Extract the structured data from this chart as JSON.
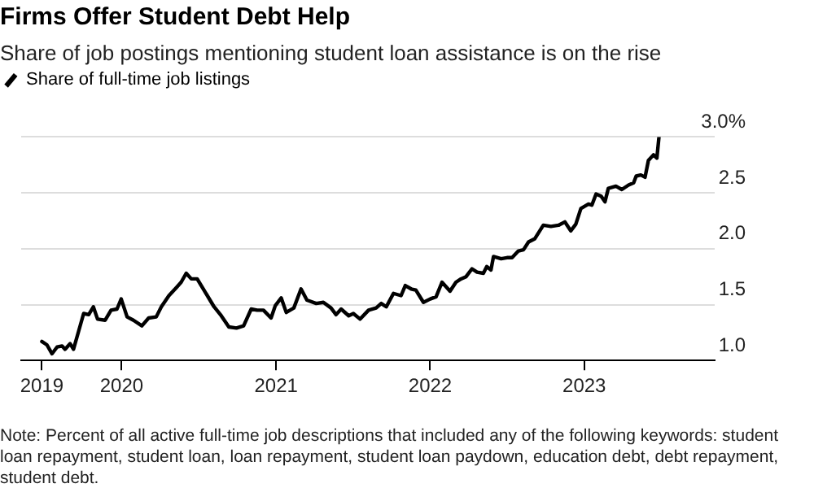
{
  "chart_data": {
    "type": "line",
    "title": "Firms Offer Student Debt Help",
    "subtitle": "Share of job postings mentioning student loan assistance is on the rise",
    "annotations": [
      "Note: Percent of all active full-time job descriptions that included any of the following keywords: student loan repayment, student loan, loan repayment, student loan paydown, education debt, debt repayment, student debt."
    ],
    "x": [
      "2019-06-26",
      "2019-07-08",
      "2019-07-20",
      "2019-08-01",
      "2019-08-13",
      "2019-08-20",
      "2019-09-01",
      "2019-09-09",
      "2019-09-21",
      "2019-10-03",
      "2019-10-15",
      "2019-10-26",
      "2019-11-05",
      "2019-11-23",
      "2019-12-07",
      "2019-12-21",
      "2019-12-31",
      "2020-01-14",
      "2020-01-29",
      "2020-02-18",
      "2020-03-05",
      "2020-03-23",
      "2020-04-04",
      "2020-04-22",
      "2020-05-09",
      "2020-05-21",
      "2020-06-02",
      "2020-06-14",
      "2020-06-28",
      "2020-07-14",
      "2020-08-07",
      "2020-08-24",
      "2020-09-11",
      "2020-09-29",
      "2020-10-16",
      "2020-11-03",
      "2020-11-17",
      "2020-12-02",
      "2020-12-20",
      "2020-12-30",
      "2021-01-13",
      "2021-01-25",
      "2021-02-12",
      "2021-03-01",
      "2021-03-15",
      "2021-04-06",
      "2021-04-23",
      "2021-05-11",
      "2021-05-23",
      "2021-06-04",
      "2021-06-22",
      "2021-07-03",
      "2021-07-19",
      "2021-08-08",
      "2021-08-26",
      "2021-09-07",
      "2021-09-19",
      "2021-10-06",
      "2021-10-24",
      "2021-11-03",
      "2021-11-17",
      "2021-11-28",
      "2021-12-16",
      "2022-01-01",
      "2022-01-15",
      "2022-01-29",
      "2022-02-17",
      "2022-03-03",
      "2022-03-15",
      "2022-03-27",
      "2022-04-10",
      "2022-04-22",
      "2022-05-07",
      "2022-05-15",
      "2022-05-25",
      "2022-05-31",
      "2022-06-18",
      "2022-07-02",
      "2022-07-14",
      "2022-07-29",
      "2022-08-10",
      "2022-08-22",
      "2022-09-06",
      "2022-09-26",
      "2022-10-14",
      "2022-11-01",
      "2022-11-16",
      "2022-11-30",
      "2022-12-12",
      "2022-12-24",
      "2023-01-11",
      "2023-01-19",
      "2023-01-29",
      "2023-02-10",
      "2023-02-19",
      "2023-02-27",
      "2023-03-17",
      "2023-03-31",
      "2023-04-16",
      "2023-04-28",
      "2023-05-04",
      "2023-05-15",
      "2023-05-25",
      "2023-06-02",
      "2023-06-14",
      "2023-06-22",
      "2023-06-27"
    ],
    "series": [
      {
        "name": "Share of full-time job listings",
        "color": "#000000",
        "values": [
          1.17,
          1.14,
          1.06,
          1.12,
          1.13,
          1.1,
          1.15,
          1.1,
          1.26,
          1.42,
          1.41,
          1.48,
          1.37,
          1.36,
          1.45,
          1.46,
          1.55,
          1.39,
          1.36,
          1.31,
          1.38,
          1.39,
          1.48,
          1.58,
          1.65,
          1.7,
          1.78,
          1.73,
          1.73,
          1.63,
          1.48,
          1.4,
          1.3,
          1.29,
          1.31,
          1.46,
          1.45,
          1.45,
          1.38,
          1.49,
          1.56,
          1.43,
          1.47,
          1.64,
          1.54,
          1.51,
          1.52,
          1.47,
          1.41,
          1.46,
          1.4,
          1.42,
          1.37,
          1.45,
          1.47,
          1.51,
          1.48,
          1.6,
          1.58,
          1.67,
          1.64,
          1.63,
          1.52,
          1.55,
          1.57,
          1.7,
          1.62,
          1.7,
          1.73,
          1.75,
          1.82,
          1.79,
          1.78,
          1.84,
          1.81,
          1.93,
          1.91,
          1.92,
          1.92,
          1.98,
          1.99,
          2.06,
          2.09,
          2.21,
          2.2,
          2.21,
          2.24,
          2.16,
          2.22,
          2.36,
          2.4,
          2.39,
          2.49,
          2.47,
          2.42,
          2.54,
          2.56,
          2.53,
          2.57,
          2.59,
          2.65,
          2.66,
          2.64,
          2.79,
          2.84,
          2.81,
          3.0
        ]
      }
    ],
    "xlim": [
      "2019-05-08",
      "2023-11-06"
    ],
    "xticks": [
      {
        "value": "2019-06-26",
        "label": "2019"
      },
      {
        "value": "2020-01-01",
        "label": "2020"
      },
      {
        "value": "2021-01-01",
        "label": "2021"
      },
      {
        "value": "2022-01-01",
        "label": "2022"
      },
      {
        "value": "2023-01-01",
        "label": "2023"
      }
    ],
    "ylim": [
      1,
      3
    ],
    "yticks": [
      {
        "value": 1,
        "label": "1.0"
      },
      {
        "value": 1.5,
        "label": "1.5"
      },
      {
        "value": 2,
        "label": "2.0"
      },
      {
        "value": 2.5,
        "label": "2.5"
      },
      {
        "value": 3,
        "label": "3.0%"
      }
    ],
    "grid": "y",
    "legend": "top left",
    "marker": "none",
    "line_style": "solid"
  }
}
